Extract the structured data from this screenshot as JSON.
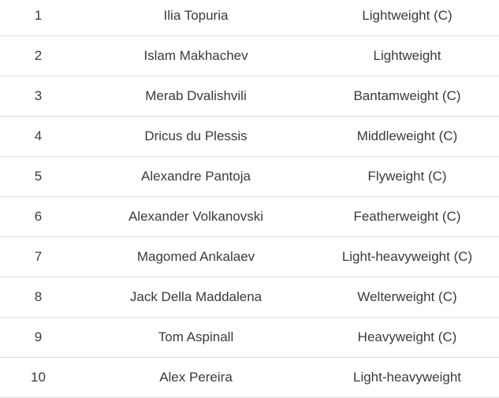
{
  "rankings": [
    {
      "rank": "1",
      "name": "Ilia Topuria",
      "division": "Lightweight (C)"
    },
    {
      "rank": "2",
      "name": "Islam Makhachev",
      "division": "Lightweight"
    },
    {
      "rank": "3",
      "name": "Merab Dvalishvili",
      "division": "Bantamweight (C)"
    },
    {
      "rank": "4",
      "name": "Dricus du Plessis",
      "division": "Middleweight (C)"
    },
    {
      "rank": "5",
      "name": "Alexandre Pantoja",
      "division": "Flyweight (C)"
    },
    {
      "rank": "6",
      "name": "Alexander Volkanovski",
      "division": "Featherweight (C)"
    },
    {
      "rank": "7",
      "name": "Magomed Ankalaev",
      "division": "Light-heavyweight (C)"
    },
    {
      "rank": "8",
      "name": "Jack Della Maddalena",
      "division": "Welterweight (C)"
    },
    {
      "rank": "9",
      "name": "Tom Aspinall",
      "division": "Heavyweight (C)"
    },
    {
      "rank": "10",
      "name": "Alex Pereira",
      "division": "Light-heavyweight"
    }
  ]
}
